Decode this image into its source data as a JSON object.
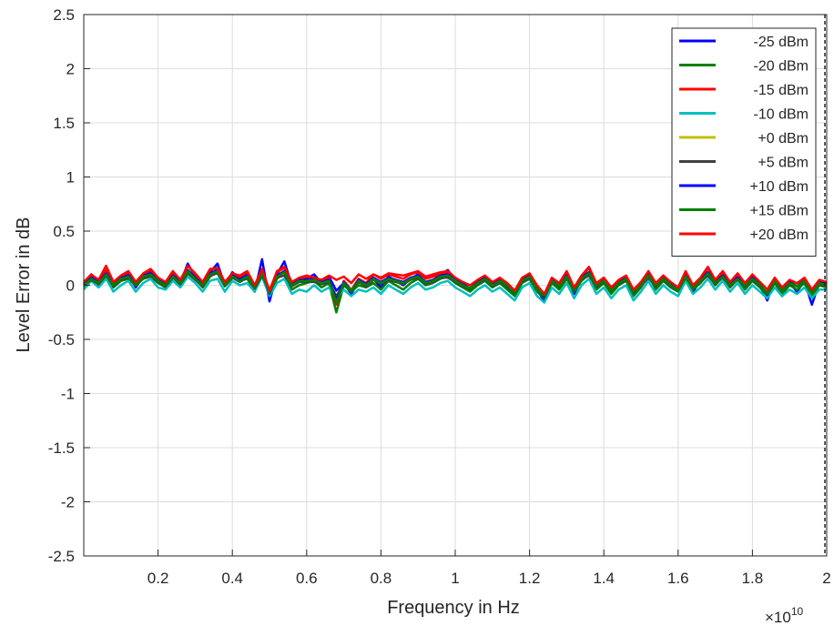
{
  "chart_data": {
    "type": "line",
    "title": "",
    "xlabel": "Frequency in Hz",
    "ylabel": "Level Error in dB",
    "x_exponent_label": "×10",
    "x_exponent_power": "10",
    "xlim": [
      0,
      2
    ],
    "ylim": [
      -2.5,
      2.5
    ],
    "x_ticks": [
      "0.2",
      "0.4",
      "0.6",
      "0.8",
      "1",
      "1.2",
      "1.4",
      "1.6",
      "1.8",
      "2"
    ],
    "y_ticks": [
      "2.5",
      "2",
      "1.5",
      "1",
      "0.5",
      "0",
      "-0.5",
      "-1",
      "-1.5",
      "-2",
      "-2.5"
    ],
    "grid": true,
    "legend_position": "top-right",
    "x": [
      0.0,
      0.02,
      0.04,
      0.06,
      0.08,
      0.1,
      0.12,
      0.14,
      0.16,
      0.18,
      0.2,
      0.22,
      0.24,
      0.26,
      0.28,
      0.3,
      0.32,
      0.34,
      0.36,
      0.38,
      0.4,
      0.42,
      0.44,
      0.46,
      0.48,
      0.5,
      0.52,
      0.54,
      0.56,
      0.58,
      0.6,
      0.62,
      0.64,
      0.66,
      0.68,
      0.7,
      0.72,
      0.74,
      0.76,
      0.78,
      0.8,
      0.82,
      0.84,
      0.86,
      0.88,
      0.9,
      0.92,
      0.94,
      0.96,
      0.98,
      1.0,
      1.02,
      1.04,
      1.06,
      1.08,
      1.1,
      1.12,
      1.14,
      1.16,
      1.18,
      1.2,
      1.22,
      1.24,
      1.26,
      1.28,
      1.3,
      1.32,
      1.34,
      1.36,
      1.38,
      1.4,
      1.42,
      1.44,
      1.46,
      1.48,
      1.5,
      1.52,
      1.54,
      1.56,
      1.58,
      1.6,
      1.62,
      1.64,
      1.66,
      1.68,
      1.7,
      1.72,
      1.74,
      1.76,
      1.78,
      1.8,
      1.82,
      1.84,
      1.86,
      1.88,
      1.9,
      1.92,
      1.94,
      1.96,
      1.98,
      2.0
    ],
    "series": [
      {
        "name": "-25 dBm",
        "color": "#0000ff",
        "values": [
          0.0,
          0.08,
          0.02,
          0.12,
          0.0,
          0.06,
          0.1,
          -0.02,
          0.08,
          0.12,
          0.04,
          0.0,
          0.1,
          0.02,
          0.2,
          0.08,
          0.0,
          0.12,
          0.2,
          0.0,
          0.12,
          0.06,
          0.1,
          -0.06,
          0.24,
          -0.15,
          0.1,
          0.22,
          0.0,
          0.04,
          0.06,
          0.1,
          0.02,
          0.08,
          -0.05,
          0.02,
          -0.08,
          0.04,
          0.0,
          0.06,
          -0.02,
          0.08,
          0.04,
          0.0,
          0.06,
          0.1,
          0.02,
          0.04,
          0.1,
          0.14,
          0.05,
          0.0,
          -0.04,
          0.02,
          0.06,
          0.0,
          0.04,
          -0.02,
          -0.08,
          0.04,
          0.08,
          -0.04,
          -0.15,
          0.04,
          -0.02,
          0.1,
          -0.08,
          0.06,
          0.12,
          -0.02,
          0.04,
          -0.06,
          0.02,
          0.06,
          -0.08,
          0.0,
          0.1,
          -0.02,
          0.06,
          0.0,
          -0.05,
          0.1,
          -0.06,
          0.04,
          0.12,
          0.02,
          0.1,
          0.0,
          0.08,
          -0.02,
          0.06,
          0.0,
          -0.14,
          0.04,
          -0.1,
          0.02,
          -0.06,
          0.04,
          -0.18,
          0.02,
          0.0
        ]
      },
      {
        "name": "-20 dBm",
        "color": "#008000",
        "values": [
          -0.02,
          0.06,
          0.0,
          0.08,
          -0.02,
          0.04,
          0.06,
          0.0,
          0.06,
          0.08,
          0.02,
          -0.02,
          0.08,
          0.0,
          0.12,
          0.06,
          -0.02,
          0.08,
          0.12,
          0.0,
          0.08,
          0.04,
          0.06,
          -0.04,
          0.12,
          -0.1,
          0.06,
          0.12,
          -0.04,
          0.0,
          0.02,
          0.04,
          -0.02,
          0.02,
          -0.25,
          0.0,
          -0.06,
          0.0,
          -0.02,
          0.02,
          -0.04,
          0.04,
          0.0,
          -0.04,
          0.02,
          0.06,
          0.0,
          0.02,
          0.06,
          0.08,
          0.02,
          -0.02,
          -0.06,
          0.0,
          0.04,
          -0.02,
          0.02,
          -0.04,
          -0.1,
          0.02,
          0.06,
          -0.06,
          -0.12,
          0.02,
          -0.04,
          0.06,
          -0.06,
          0.04,
          0.1,
          -0.04,
          0.02,
          -0.08,
          0.0,
          0.04,
          -0.1,
          -0.02,
          0.1,
          -0.04,
          0.04,
          -0.02,
          -0.06,
          0.08,
          -0.04,
          0.02,
          0.1,
          0.0,
          0.08,
          -0.02,
          0.06,
          -0.04,
          0.04,
          -0.02,
          -0.1,
          0.02,
          -0.08,
          0.0,
          -0.04,
          0.02,
          -0.1,
          0.0,
          -0.02
        ]
      },
      {
        "name": "-15 dBm",
        "color": "#ff0000",
        "values": [
          0.02,
          0.1,
          0.04,
          0.14,
          0.02,
          0.08,
          0.12,
          0.02,
          0.1,
          0.14,
          0.06,
          0.02,
          0.12,
          0.04,
          0.18,
          0.1,
          0.02,
          0.14,
          0.16,
          0.02,
          0.1,
          0.08,
          0.12,
          -0.02,
          0.14,
          -0.06,
          0.12,
          0.16,
          0.02,
          0.06,
          0.08,
          0.06,
          0.04,
          0.06,
          -0.18,
          0.04,
          -0.04,
          0.06,
          0.02,
          0.1,
          0.06,
          0.1,
          0.08,
          0.06,
          0.1,
          0.12,
          0.06,
          0.08,
          0.1,
          0.12,
          0.06,
          0.02,
          -0.02,
          0.04,
          0.08,
          0.02,
          0.06,
          0.0,
          -0.06,
          0.06,
          0.1,
          -0.02,
          -0.1,
          0.06,
          0.0,
          0.12,
          -0.04,
          0.08,
          0.16,
          0.0,
          0.06,
          -0.04,
          0.04,
          0.08,
          -0.06,
          0.02,
          0.12,
          0.0,
          0.08,
          0.02,
          -0.04,
          0.12,
          -0.02,
          0.06,
          0.16,
          0.04,
          0.12,
          0.02,
          0.1,
          0.0,
          0.08,
          0.02,
          -0.06,
          0.06,
          -0.04,
          0.04,
          0.0,
          0.06,
          -0.06,
          0.04,
          0.02
        ]
      },
      {
        "name": "-10 dBm",
        "color": "#00bfbf",
        "values": [
          -0.04,
          0.04,
          -0.02,
          0.06,
          -0.06,
          0.0,
          0.04,
          -0.06,
          0.02,
          0.06,
          -0.02,
          -0.04,
          0.04,
          -0.02,
          0.08,
          0.02,
          -0.06,
          0.04,
          0.06,
          -0.06,
          0.04,
          0.0,
          0.02,
          -0.06,
          0.08,
          -0.1,
          0.02,
          0.06,
          -0.08,
          -0.04,
          -0.06,
          0.0,
          -0.06,
          -0.02,
          -0.12,
          -0.04,
          -0.1,
          -0.04,
          -0.06,
          -0.02,
          -0.08,
          0.0,
          -0.04,
          -0.08,
          -0.02,
          0.02,
          -0.04,
          -0.02,
          0.02,
          0.04,
          -0.02,
          -0.06,
          -0.1,
          -0.04,
          0.0,
          -0.06,
          -0.02,
          -0.08,
          -0.14,
          -0.02,
          0.02,
          -0.1,
          -0.16,
          -0.02,
          -0.08,
          0.02,
          -0.12,
          0.0,
          0.06,
          -0.08,
          -0.02,
          -0.12,
          -0.04,
          0.0,
          -0.14,
          -0.06,
          0.04,
          -0.08,
          0.0,
          -0.06,
          -0.1,
          0.04,
          -0.08,
          -0.02,
          0.06,
          -0.04,
          0.04,
          -0.06,
          0.02,
          -0.08,
          0.0,
          -0.06,
          -0.12,
          -0.02,
          -0.1,
          -0.04,
          -0.08,
          -0.02,
          -0.12,
          -0.04,
          -0.04
        ]
      },
      {
        "name": "+0 dBm",
        "color": "#bfbf00",
        "values": [
          0.0,
          0.06,
          0.02,
          0.1,
          0.0,
          0.06,
          0.08,
          0.0,
          0.08,
          0.1,
          0.04,
          0.0,
          0.08,
          0.02,
          0.12,
          0.06,
          0.0,
          0.1,
          0.12,
          0.0,
          0.08,
          0.04,
          0.08,
          -0.02,
          0.1,
          -0.04,
          0.08,
          0.1,
          0.0,
          0.04,
          0.04,
          0.04,
          0.02,
          0.04,
          -0.12,
          0.02,
          -0.04,
          0.04,
          0.0,
          0.06,
          0.02,
          0.06,
          0.04,
          0.02,
          0.06,
          0.08,
          0.02,
          0.04,
          0.08,
          0.08,
          0.04,
          0.0,
          -0.02,
          0.02,
          0.06,
          0.0,
          0.04,
          0.0,
          -0.06,
          0.04,
          0.08,
          -0.02,
          -0.08,
          0.04,
          0.0,
          0.08,
          -0.04,
          0.06,
          0.1,
          0.0,
          0.04,
          -0.04,
          0.02,
          0.06,
          -0.04,
          0.0,
          0.08,
          0.0,
          0.06,
          0.0,
          -0.04,
          0.08,
          -0.02,
          0.04,
          0.1,
          0.02,
          0.08,
          0.0,
          0.06,
          0.0,
          0.06,
          0.0,
          -0.06,
          0.04,
          -0.04,
          0.02,
          0.0,
          0.04,
          -0.06,
          0.02,
          0.0
        ]
      },
      {
        "name": "+5 dBm",
        "color": "#404040",
        "values": [
          0.0,
          0.05,
          0.01,
          0.09,
          -0.01,
          0.05,
          0.07,
          -0.01,
          0.07,
          0.09,
          0.03,
          -0.01,
          0.07,
          0.01,
          0.11,
          0.05,
          -0.01,
          0.09,
          0.11,
          -0.01,
          0.07,
          0.03,
          0.07,
          -0.03,
          0.09,
          -0.05,
          0.07,
          0.09,
          -0.01,
          0.03,
          0.03,
          0.03,
          0.01,
          0.03,
          -0.1,
          0.01,
          -0.05,
          0.03,
          -0.01,
          0.05,
          0.01,
          0.05,
          0.03,
          0.01,
          0.05,
          0.07,
          0.01,
          0.03,
          0.07,
          0.07,
          0.03,
          -0.01,
          -0.03,
          0.01,
          0.05,
          -0.01,
          0.03,
          -0.01,
          -0.07,
          0.03,
          0.07,
          -0.03,
          -0.09,
          0.03,
          -0.01,
          0.07,
          -0.05,
          0.05,
          0.09,
          -0.01,
          0.03,
          -0.05,
          0.01,
          0.05,
          -0.05,
          -0.01,
          0.07,
          -0.01,
          0.05,
          -0.01,
          -0.05,
          0.07,
          -0.03,
          0.03,
          0.09,
          0.01,
          0.07,
          -0.01,
          0.05,
          -0.01,
          0.05,
          -0.01,
          -0.07,
          0.03,
          -0.05,
          0.01,
          -0.01,
          0.03,
          -0.07,
          0.01,
          -0.01
        ]
      },
      {
        "name": "+10 dBm",
        "color": "#0000ff",
        "values": [
          0.01,
          0.07,
          0.03,
          0.11,
          0.01,
          0.07,
          0.09,
          0.01,
          0.09,
          0.11,
          0.05,
          0.01,
          0.09,
          0.03,
          0.14,
          0.07,
          0.01,
          0.11,
          0.14,
          0.01,
          0.09,
          0.05,
          0.09,
          -0.01,
          0.12,
          -0.08,
          0.09,
          0.13,
          0.01,
          0.05,
          0.05,
          0.06,
          0.03,
          0.05,
          -0.14,
          0.03,
          -0.05,
          0.05,
          0.01,
          0.07,
          0.03,
          0.07,
          0.05,
          0.03,
          0.07,
          0.09,
          0.03,
          0.05,
          0.09,
          0.1,
          0.05,
          0.01,
          -0.03,
          0.03,
          0.07,
          0.01,
          0.05,
          0.01,
          -0.07,
          0.05,
          0.09,
          -0.03,
          -0.11,
          0.05,
          -0.01,
          0.09,
          -0.05,
          0.07,
          0.12,
          0.01,
          0.05,
          -0.05,
          0.03,
          0.07,
          -0.06,
          0.01,
          0.1,
          0.01,
          0.07,
          0.01,
          -0.05,
          0.09,
          -0.03,
          0.05,
          0.12,
          0.03,
          0.09,
          0.01,
          0.07,
          0.01,
          0.07,
          0.01,
          -0.09,
          0.05,
          -0.06,
          0.03,
          -0.01,
          0.05,
          -0.08,
          0.03,
          0.01
        ]
      },
      {
        "name": "+15 dBm",
        "color": "#008000",
        "values": [
          0.0,
          0.06,
          0.02,
          0.1,
          0.0,
          0.06,
          0.08,
          0.0,
          0.08,
          0.1,
          0.04,
          0.0,
          0.08,
          0.02,
          0.13,
          0.06,
          0.0,
          0.1,
          0.13,
          0.0,
          0.08,
          0.04,
          0.08,
          -0.02,
          0.11,
          -0.07,
          0.08,
          0.12,
          0.0,
          0.04,
          0.04,
          0.05,
          0.02,
          0.04,
          -0.16,
          0.02,
          -0.05,
          0.04,
          0.0,
          0.06,
          0.02,
          0.06,
          0.04,
          0.02,
          0.06,
          0.08,
          0.02,
          0.04,
          0.08,
          0.09,
          0.04,
          0.0,
          -0.03,
          0.02,
          0.06,
          0.0,
          0.04,
          0.0,
          -0.07,
          0.04,
          0.08,
          -0.03,
          -0.1,
          0.04,
          -0.01,
          0.08,
          -0.05,
          0.06,
          0.11,
          0.0,
          0.04,
          -0.05,
          0.02,
          0.06,
          -0.06,
          0.0,
          0.09,
          0.0,
          0.06,
          0.0,
          -0.05,
          0.08,
          -0.03,
          0.04,
          0.11,
          0.02,
          0.08,
          0.0,
          0.06,
          0.0,
          0.06,
          0.0,
          -0.08,
          0.04,
          -0.06,
          0.02,
          -0.01,
          0.04,
          -0.08,
          0.02,
          0.0
        ]
      },
      {
        "name": "+20 dBm",
        "color": "#ff0000",
        "values": [
          0.03,
          0.1,
          0.05,
          0.18,
          0.03,
          0.09,
          0.13,
          0.03,
          0.11,
          0.15,
          0.07,
          0.03,
          0.13,
          0.05,
          0.18,
          0.11,
          0.03,
          0.15,
          0.16,
          0.03,
          0.11,
          0.09,
          0.13,
          0.0,
          0.15,
          -0.05,
          0.13,
          0.17,
          0.03,
          0.07,
          0.09,
          0.07,
          0.05,
          0.09,
          0.05,
          0.08,
          0.02,
          0.1,
          0.06,
          0.1,
          0.07,
          0.11,
          0.1,
          0.09,
          0.11,
          0.13,
          0.08,
          0.1,
          0.12,
          0.13,
          0.07,
          0.03,
          0.0,
          0.05,
          0.09,
          0.03,
          0.07,
          0.02,
          -0.05,
          0.07,
          0.11,
          0.0,
          -0.08,
          0.07,
          0.02,
          0.13,
          -0.02,
          0.09,
          0.17,
          0.02,
          0.07,
          -0.02,
          0.05,
          0.09,
          -0.04,
          0.03,
          0.13,
          0.02,
          0.09,
          0.03,
          -0.02,
          0.13,
          0.0,
          0.07,
          0.17,
          0.05,
          0.13,
          0.03,
          0.11,
          0.02,
          0.1,
          0.03,
          -0.04,
          0.07,
          -0.02,
          0.05,
          0.02,
          0.07,
          -0.04,
          0.05,
          0.03
        ]
      }
    ]
  }
}
